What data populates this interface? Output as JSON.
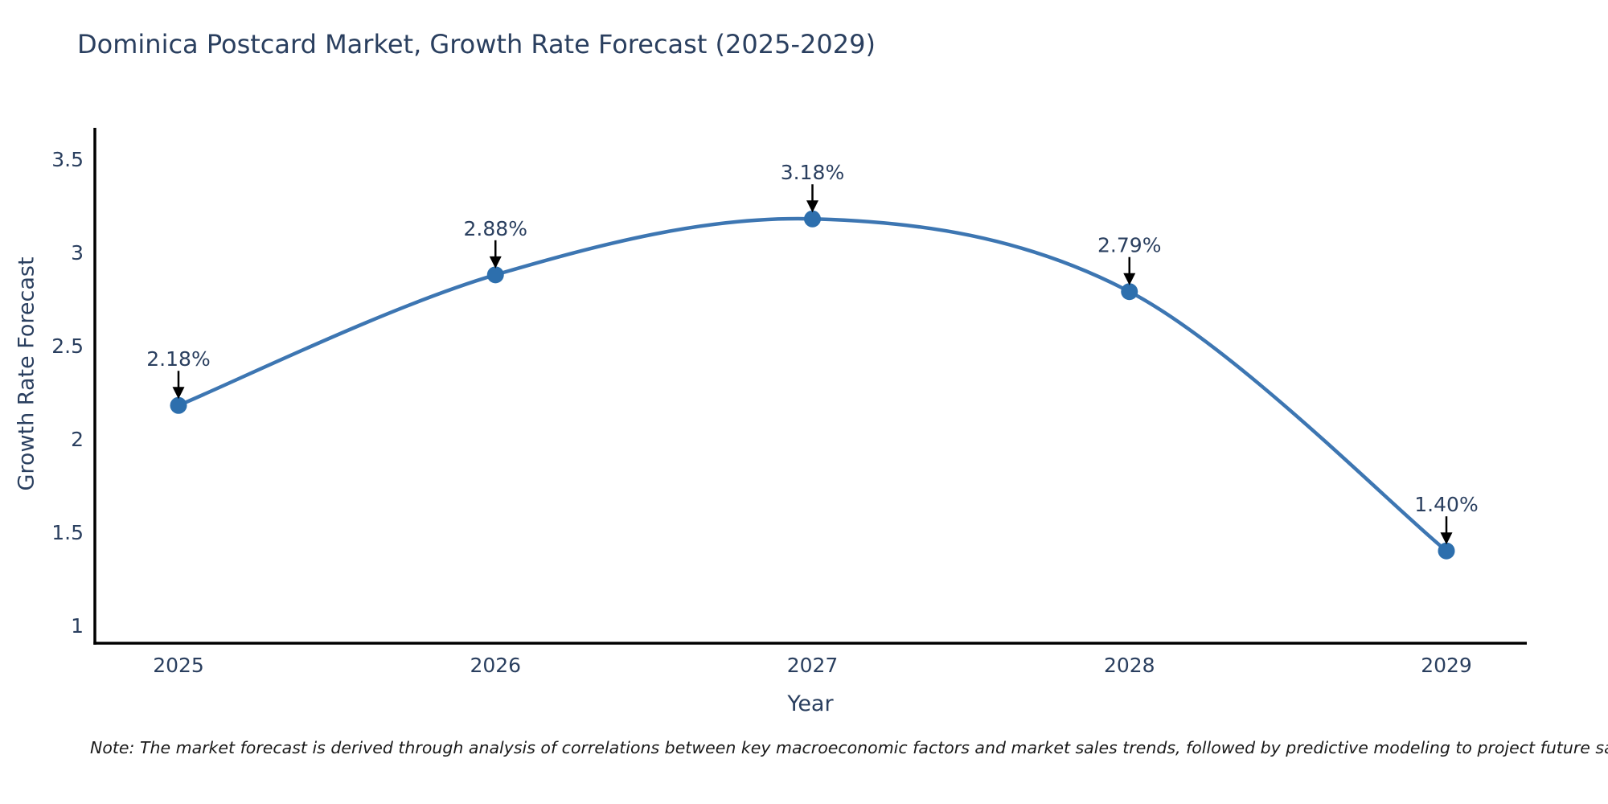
{
  "chart": {
    "title": "Dominica Postcard Market, Growth Rate Forecast (2025-2029)",
    "xlabel": "Year",
    "ylabel": "Growth Rate Forecast",
    "note": "Note: The market forecast is derived through analysis of correlations between key macroeconomic factors and market sales trends, followed by predictive modeling to project future sales"
  },
  "chart_data": {
    "type": "line",
    "title": "Dominica Postcard Market, Growth Rate Forecast (2025-2029)",
    "xlabel": "Year",
    "ylabel": "Growth Rate Forecast",
    "categories": [
      "2025",
      "2026",
      "2027",
      "2028",
      "2029"
    ],
    "series": [
      {
        "name": "Growth Rate Forecast",
        "values": [
          2.18,
          2.88,
          3.18,
          2.79,
          1.4
        ]
      }
    ],
    "point_labels": [
      "2.18%",
      "2.88%",
      "3.18%",
      "2.79%",
      "1.40%"
    ],
    "y_ticks": [
      1,
      1.5,
      2,
      2.5,
      3,
      3.5
    ],
    "y_tick_labels": [
      "1",
      "1.5",
      "2",
      "2.5",
      "3",
      "3.5"
    ],
    "ylim": [
      1.0,
      3.67
    ],
    "grid": false,
    "legend_position": "none",
    "line_shape": "spline",
    "annotations": "value labels with downward arrows above each point",
    "colors": {
      "line": "#3d76b2",
      "marker": "#2d6fad",
      "axis": "#000000",
      "tick_text": "#2a3f5f",
      "annotation_text": "#2a3f5f",
      "arrow": "#000000",
      "note_text": "#1a1a1a",
      "background": "#ffffff"
    }
  }
}
